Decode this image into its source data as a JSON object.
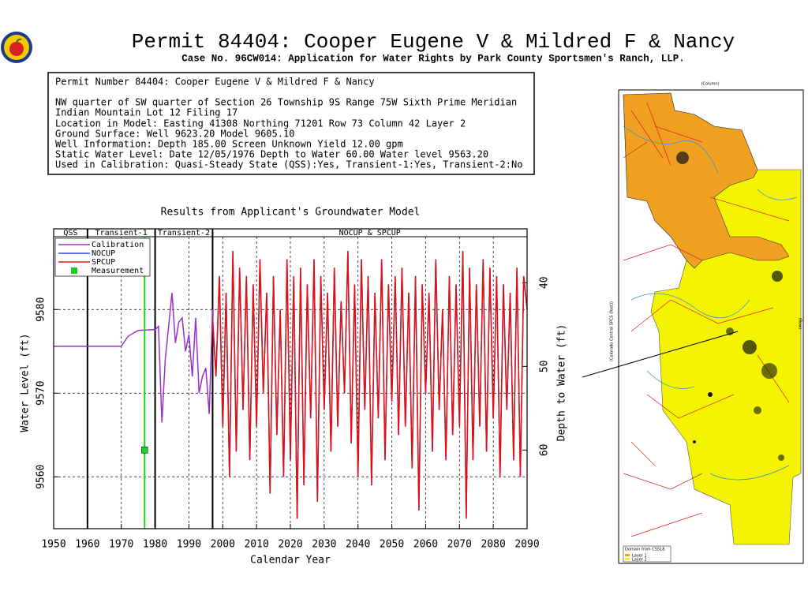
{
  "header": {
    "title": "Permit 84404:  Cooper Eugene V & Mildred F & Nancy",
    "subtitle": "Case No. 96CW014: Application for Water Rights by Park County Sportsmen's Ranch, LLP."
  },
  "info": {
    "lines": [
      "Permit Number 84404: Cooper Eugene V & Mildred F & Nancy",
      "NW quarter of SW quarter of Section 26 Township 9S Range 75W Sixth Prime Meridian",
      "Indian Mountain Lot 12 Filing 17",
      "Location in Model: Easting 41308 Northing  71201 Row   73 Column 42 Layer 2",
      "Ground Surface: Well    9623.20 Model    9605.10",
      "Well Information: Depth    185.00 Screen Unknown Yield      12.00 gpm",
      "Static Water Level: Date 12/05/1976 Depth to Water     60.00 Water level    9563.20",
      "Used in Calibration: Quasi-Steady State (QSS):Yes, Transient-1:Yes, Transient-2:No"
    ]
  },
  "chart_data": {
    "type": "line",
    "title": "Results from Applicant's Groundwater Model",
    "xlabel": "Calendar Year",
    "ylabel": "Water Level (ft)",
    "y2label": "Depth to Water (ft)",
    "xlim": [
      1950,
      2090
    ],
    "xticks": [
      1950,
      1960,
      1970,
      1980,
      1990,
      2000,
      2010,
      2020,
      2030,
      2040,
      2050,
      2060,
      2070,
      2080,
      2090
    ],
    "ylim": [
      9553.8,
      9588.7
    ],
    "yticks": [
      9560,
      9570,
      9580
    ],
    "y2lim": [
      69.4,
      34.5
    ],
    "y2ticks": [
      40,
      50,
      60
    ],
    "grid": true,
    "legend": "upper left",
    "periods": [
      {
        "label": "QSS",
        "start": 1950,
        "end": 1960
      },
      {
        "label": "Transient-1",
        "start": 1960,
        "end": 1980
      },
      {
        "label": "Transient-2",
        "start": 1980,
        "end": 1997
      },
      {
        "label": "NOCUP & SPCUP",
        "start": 1997,
        "end": 2090
      }
    ],
    "series": [
      {
        "name": "Calibration",
        "color": "#9b30c8",
        "x": [
          1950,
          1960,
          1970,
          1972,
          1975,
          1980,
          1981,
          1982,
          1983,
          1985,
          1986,
          1987,
          1988,
          1989,
          1990,
          1991,
          1992,
          1993,
          1994,
          1995,
          1996,
          1997
        ],
        "values": [
          9575.6,
          9575.6,
          9575.6,
          9576.8,
          9577.5,
          9577.6,
          9578,
          9566.5,
          9574,
          9582,
          9576,
          9578.5,
          9579,
          9575,
          9577,
          9572,
          9579,
          9570,
          9572,
          9573,
          9567.5,
          9580
        ]
      },
      {
        "name": "NOCUP",
        "color": "#3050e0",
        "x": [
          1997,
          1998,
          1999,
          2000,
          2001,
          2002,
          2003,
          2004,
          2005,
          2006,
          2007,
          2008,
          2009,
          2010,
          2011,
          2012,
          2013,
          2014,
          2015,
          2016,
          2017,
          2018,
          2019,
          2020,
          2021,
          2022,
          2023,
          2024,
          2025,
          2026,
          2027,
          2028,
          2029,
          2030,
          2031,
          2032,
          2033,
          2034,
          2035,
          2036,
          2037,
          2038,
          2039,
          2040,
          2041,
          2042,
          2043,
          2044,
          2045,
          2046,
          2047,
          2048,
          2049,
          2050,
          2051,
          2052,
          2053,
          2054,
          2055,
          2056,
          2057,
          2058,
          2059,
          2060,
          2061,
          2062,
          2063,
          2064,
          2065,
          2066,
          2067,
          2068,
          2069,
          2070,
          2071,
          2072,
          2073,
          2074,
          2075,
          2076,
          2077,
          2078,
          2079,
          2080,
          2081,
          2082,
          2083,
          2084,
          2085,
          2086,
          2087,
          2088,
          2089,
          2090
        ],
        "values": [
          9579,
          9572,
          9584,
          9566,
          9582,
          9560,
          9587,
          9563,
          9585,
          9568,
          9584,
          9562,
          9583,
          9566,
          9586,
          9570,
          9582,
          9558,
          9584,
          9565,
          9580,
          9560,
          9586,
          9562,
          9584,
          9555,
          9585,
          9559,
          9583,
          9567,
          9586,
          9557,
          9584,
          9568,
          9582,
          9563,
          9585,
          9566,
          9581,
          9570,
          9587,
          9564,
          9583,
          9560,
          9586,
          9568,
          9584,
          9559,
          9582,
          9567,
          9586,
          9562,
          9583,
          9569,
          9584,
          9565,
          9585,
          9566,
          9582,
          9561,
          9584,
          9556,
          9583,
          9570,
          9582,
          9563,
          9586,
          9568,
          9580,
          9562,
          9584,
          9565,
          9583,
          9566,
          9587,
          9555,
          9585,
          9562,
          9583,
          9566,
          9586,
          9563,
          9585,
          9567,
          9584,
          9560,
          9583,
          9568,
          9582,
          9562,
          9585,
          9560,
          9584,
          9580
        ]
      },
      {
        "name": "SPCUP",
        "color": "#e01010",
        "x": [
          1997,
          1998,
          1999,
          2000,
          2001,
          2002,
          2003,
          2004,
          2005,
          2006,
          2007,
          2008,
          2009,
          2010,
          2011,
          2012,
          2013,
          2014,
          2015,
          2016,
          2017,
          2018,
          2019,
          2020,
          2021,
          2022,
          2023,
          2024,
          2025,
          2026,
          2027,
          2028,
          2029,
          2030,
          2031,
          2032,
          2033,
          2034,
          2035,
          2036,
          2037,
          2038,
          2039,
          2040,
          2041,
          2042,
          2043,
          2044,
          2045,
          2046,
          2047,
          2048,
          2049,
          2050,
          2051,
          2052,
          2053,
          2054,
          2055,
          2056,
          2057,
          2058,
          2059,
          2060,
          2061,
          2062,
          2063,
          2064,
          2065,
          2066,
          2067,
          2068,
          2069,
          2070,
          2071,
          2072,
          2073,
          2074,
          2075,
          2076,
          2077,
          2078,
          2079,
          2080,
          2081,
          2082,
          2083,
          2084,
          2085,
          2086,
          2087,
          2088,
          2089,
          2090
        ],
        "values": [
          9579,
          9572,
          9584,
          9566,
          9582,
          9560,
          9587,
          9563,
          9585,
          9568,
          9584,
          9562,
          9583,
          9566,
          9586,
          9570,
          9582,
          9558,
          9584,
          9565,
          9580,
          9560,
          9586,
          9562,
          9584,
          9555,
          9585,
          9559,
          9583,
          9567,
          9586,
          9557,
          9584,
          9568,
          9582,
          9563,
          9585,
          9566,
          9581,
          9570,
          9587,
          9564,
          9583,
          9560,
          9586,
          9568,
          9584,
          9559,
          9582,
          9567,
          9586,
          9562,
          9583,
          9569,
          9584,
          9565,
          9585,
          9566,
          9582,
          9561,
          9584,
          9556,
          9583,
          9570,
          9582,
          9563,
          9586,
          9568,
          9580,
          9562,
          9584,
          9565,
          9583,
          9566,
          9587,
          9555,
          9585,
          9562,
          9583,
          9566,
          9586,
          9563,
          9585,
          9567,
          9584,
          9560,
          9583,
          9568,
          9582,
          9562,
          9585,
          9560,
          9584,
          9580
        ]
      },
      {
        "name": "Measurement",
        "color": "#20d020",
        "marker": true,
        "x": [
          1976.9
        ],
        "values": [
          9563.2
        ]
      }
    ]
  },
  "map": {
    "labels": [
      "(Column)",
      "(Row)",
      "(Colorado Central SPCS (feet))",
      "Domain from CSS18.",
      "Layer 1",
      "Layer 2"
    ]
  }
}
